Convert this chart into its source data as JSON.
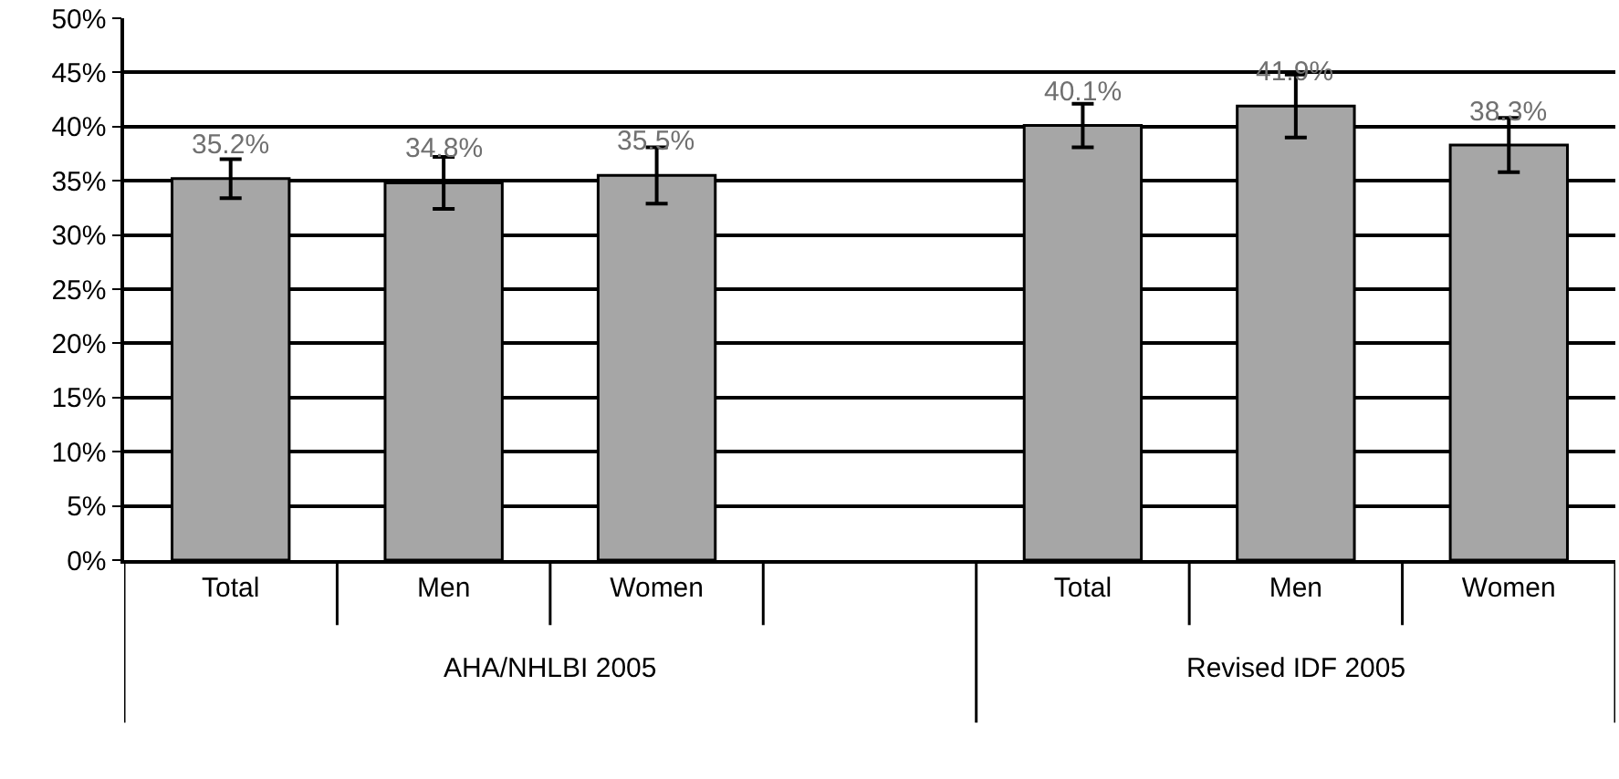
{
  "chart_data": {
    "type": "bar",
    "categories": [
      "Total",
      "Men",
      "Women",
      null,
      "Total",
      "Men",
      "Women"
    ],
    "values": [
      35.2,
      34.8,
      35.5,
      null,
      40.1,
      41.9,
      38.3
    ],
    "errors": [
      1.8,
      2.4,
      2.6,
      null,
      2.0,
      2.9,
      2.5
    ],
    "value_labels": [
      "35.2%",
      "34.8%",
      "35.5%",
      null,
      "40.1%",
      "41.9%",
      "38.3%"
    ],
    "color": "#a6a6a6",
    "ylim": [
      0,
      50
    ],
    "yticks": [
      {
        "value": 0,
        "label": "0%"
      },
      {
        "value": 5,
        "label": "5%"
      },
      {
        "value": 10,
        "label": "10%"
      },
      {
        "value": 15,
        "label": "15%"
      },
      {
        "value": 20,
        "label": "20%"
      },
      {
        "value": 25,
        "label": "25%"
      },
      {
        "value": 30,
        "label": "30%"
      },
      {
        "value": 35,
        "label": "35%"
      },
      {
        "value": 40,
        "label": "40%"
      },
      {
        "value": 45,
        "label": "45%"
      },
      {
        "value": 50,
        "label": "50%"
      }
    ],
    "grid": "y",
    "annotations": [
      "AHA/NHLBI 2005",
      "Revised IDF 2005"
    ]
  }
}
